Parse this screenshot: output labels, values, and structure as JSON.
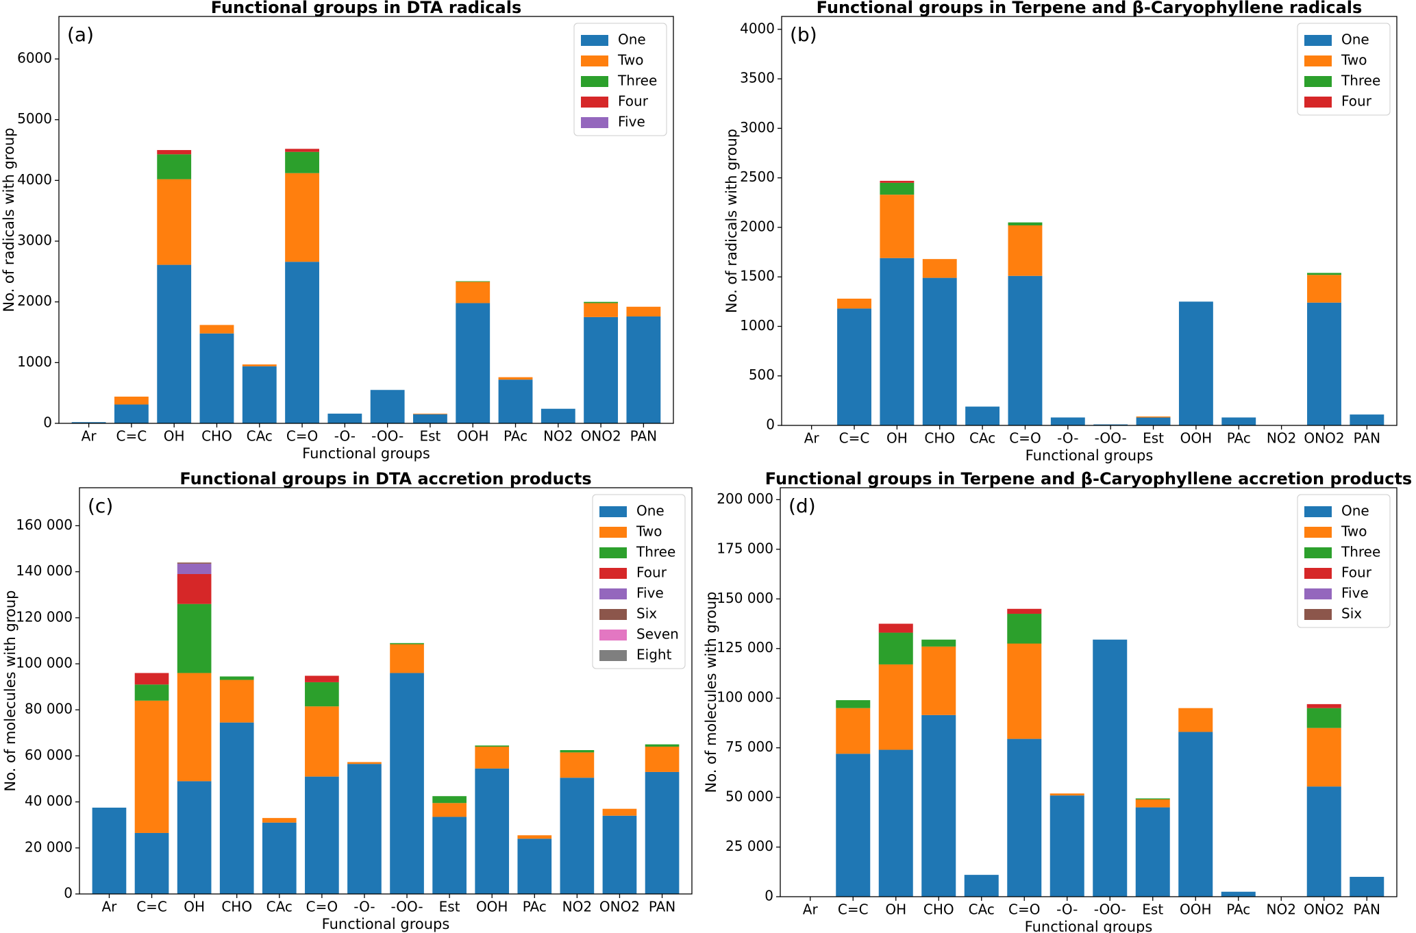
{
  "chart_data": [
    {
      "type": "bar",
      "stacked": true,
      "label": "(a)",
      "title": "Functional groups in DTA radicals",
      "xlabel": "Functional groups",
      "ylabel": "No. of radicals with group",
      "categories": [
        "Ar",
        "C=C",
        "OH",
        "CHO",
        "CAc",
        "C=O",
        "-O-",
        "-OO-",
        "Est",
        "OOH",
        "PAc",
        "NO2",
        "ONO2",
        "PAN"
      ],
      "ylim": [
        0,
        6700
      ],
      "yticks": [
        0,
        1000,
        2000,
        3000,
        4000,
        5000,
        6000
      ],
      "legend": "upper right",
      "series": [
        {
          "name": "One",
          "color": "#1f77b4",
          "values": [
            20,
            310,
            2610,
            1480,
            940,
            2660,
            160,
            550,
            150,
            1980,
            720,
            240,
            1750,
            1760
          ]
        },
        {
          "name": "Two",
          "color": "#ff7f0e",
          "values": [
            0,
            130,
            1410,
            140,
            30,
            1460,
            0,
            0,
            10,
            350,
            40,
            0,
            230,
            160
          ]
        },
        {
          "name": "Three",
          "color": "#2ca02c",
          "values": [
            0,
            0,
            410,
            0,
            0,
            350,
            0,
            0,
            0,
            10,
            0,
            0,
            20,
            0
          ]
        },
        {
          "name": "Four",
          "color": "#d62728",
          "values": [
            0,
            0,
            70,
            0,
            0,
            50,
            0,
            0,
            0,
            0,
            0,
            0,
            0,
            0
          ]
        },
        {
          "name": "Five",
          "color": "#9467bd",
          "values": [
            0,
            0,
            0,
            0,
            0,
            0,
            0,
            0,
            0,
            0,
            0,
            0,
            0,
            0
          ]
        }
      ]
    },
    {
      "type": "bar",
      "stacked": true,
      "label": "(b)",
      "title": "Functional groups in Terpene and β-Caryophyllene radicals",
      "xlabel": "Functional groups",
      "ylabel": "No. of radicals with group",
      "categories": [
        "Ar",
        "C=C",
        "OH",
        "CHO",
        "CAc",
        "C=O",
        "-O-",
        "-OO-",
        "Est",
        "OOH",
        "PAc",
        "NO2",
        "ONO2",
        "PAN"
      ],
      "ylim": [
        0,
        4130
      ],
      "yticks": [
        0,
        500,
        1000,
        1500,
        2000,
        2500,
        3000,
        3500,
        4000
      ],
      "legend": "upper right",
      "series": [
        {
          "name": "One",
          "color": "#1f77b4",
          "values": [
            0,
            1180,
            1690,
            1490,
            190,
            1510,
            80,
            10,
            80,
            1250,
            80,
            0,
            1240,
            110
          ]
        },
        {
          "name": "Two",
          "color": "#ff7f0e",
          "values": [
            0,
            100,
            640,
            190,
            0,
            510,
            0,
            0,
            10,
            0,
            0,
            0,
            280,
            0
          ]
        },
        {
          "name": "Three",
          "color": "#2ca02c",
          "values": [
            0,
            0,
            120,
            0,
            0,
            30,
            0,
            0,
            0,
            0,
            0,
            0,
            20,
            0
          ]
        },
        {
          "name": "Four",
          "color": "#d62728",
          "values": [
            0,
            0,
            20,
            0,
            0,
            0,
            0,
            0,
            0,
            0,
            0,
            0,
            0,
            0
          ]
        }
      ]
    },
    {
      "type": "bar",
      "stacked": true,
      "label": "(c)",
      "title": "Functional groups in DTA accretion products",
      "xlabel": "Functional groups",
      "ylabel": "No. of molecules with group",
      "categories": [
        "Ar",
        "C=C",
        "OH",
        "CHO",
        "CAc",
        "C=O",
        "-O-",
        "-OO-",
        "Est",
        "OOH",
        "PAc",
        "NO2",
        "ONO2",
        "PAN"
      ],
      "ylim": [
        0,
        176500
      ],
      "yticks": [
        0,
        {
          "value": 20000,
          "label": "20 000"
        },
        {
          "value": 40000,
          "label": "40 000"
        },
        {
          "value": 60000,
          "label": "60 000"
        },
        {
          "value": 80000,
          "label": "80 000"
        },
        {
          "value": 100000,
          "label": "100 000"
        },
        {
          "value": 120000,
          "label": "120 000"
        },
        {
          "value": 140000,
          "label": "140 000"
        },
        {
          "value": 160000,
          "label": "160 000"
        }
      ],
      "legend": "upper right",
      "series": [
        {
          "name": "One",
          "color": "#1f77b4",
          "values": [
            37500,
            26500,
            49000,
            74500,
            31000,
            51000,
            56500,
            96000,
            33500,
            54500,
            24000,
            50500,
            34000,
            53000
          ]
        },
        {
          "name": "Two",
          "color": "#ff7f0e",
          "values": [
            0,
            57500,
            47000,
            18500,
            2000,
            30500,
            800,
            12500,
            6000,
            9500,
            1500,
            11000,
            3000,
            11000
          ]
        },
        {
          "name": "Three",
          "color": "#2ca02c",
          "values": [
            0,
            7000,
            30000,
            1500,
            0,
            10500,
            0,
            500,
            3000,
            500,
            0,
            1000,
            0,
            1000
          ]
        },
        {
          "name": "Four",
          "color": "#d62728",
          "values": [
            0,
            5000,
            13000,
            0,
            0,
            2800,
            0,
            0,
            0,
            0,
            0,
            0,
            0,
            0
          ]
        },
        {
          "name": "Five",
          "color": "#9467bd",
          "values": [
            0,
            0,
            4500,
            0,
            0,
            0,
            0,
            0,
            0,
            0,
            0,
            0,
            0,
            0
          ]
        },
        {
          "name": "Six",
          "color": "#8c564b",
          "values": [
            0,
            0,
            500,
            0,
            0,
            0,
            0,
            0,
            0,
            0,
            0,
            0,
            0,
            0
          ]
        },
        {
          "name": "Seven",
          "color": "#e377c2",
          "values": [
            0,
            0,
            0,
            0,
            0,
            0,
            0,
            0,
            0,
            0,
            0,
            0,
            0,
            0
          ]
        },
        {
          "name": "Eight",
          "color": "#7f7f7f",
          "values": [
            0,
            0,
            0,
            0,
            0,
            0,
            0,
            0,
            0,
            0,
            0,
            0,
            0,
            0
          ]
        }
      ]
    },
    {
      "type": "bar",
      "stacked": true,
      "label": "(d)",
      "title": "Functional groups in Terpene and β-Caryophyllene accretion products",
      "xlabel": "Functional groups",
      "ylabel": "No. of molecules with group",
      "categories": [
        "Ar",
        "C=C",
        "OH",
        "CHO",
        "CAc",
        "C=O",
        "-O-",
        "-OO-",
        "Est",
        "OOH",
        "PAc",
        "NO2",
        "ONO2",
        "PAN"
      ],
      "ylim": [
        0,
        206000
      ],
      "yticks": [
        0,
        {
          "value": 25000,
          "label": "25 000"
        },
        {
          "value": 50000,
          "label": "50 000"
        },
        {
          "value": 75000,
          "label": "75 000"
        },
        {
          "value": 100000,
          "label": "100 000"
        },
        {
          "value": 125000,
          "label": "125 000"
        },
        {
          "value": 150000,
          "label": "150 000"
        },
        {
          "value": 175000,
          "label": "175 000"
        },
        {
          "value": 200000,
          "label": "200 000"
        }
      ],
      "legend": "upper right",
      "series": [
        {
          "name": "One",
          "color": "#1f77b4",
          "values": [
            0,
            72000,
            74000,
            91500,
            11000,
            79500,
            51000,
            129500,
            45000,
            83000,
            2500,
            0,
            55500,
            10000
          ]
        },
        {
          "name": "Two",
          "color": "#ff7f0e",
          "values": [
            0,
            23000,
            43000,
            34500,
            0,
            48000,
            1000,
            0,
            4000,
            12000,
            0,
            0,
            29500,
            0
          ]
        },
        {
          "name": "Three",
          "color": "#2ca02c",
          "values": [
            0,
            4000,
            16000,
            3500,
            0,
            15000,
            0,
            0,
            500,
            0,
            0,
            0,
            10000,
            0
          ]
        },
        {
          "name": "Four",
          "color": "#d62728",
          "values": [
            0,
            0,
            4500,
            0,
            0,
            2500,
            0,
            0,
            0,
            0,
            0,
            0,
            2000,
            0
          ]
        },
        {
          "name": "Five",
          "color": "#9467bd",
          "values": [
            0,
            0,
            0,
            0,
            0,
            0,
            0,
            0,
            0,
            0,
            0,
            0,
            0,
            0
          ]
        },
        {
          "name": "Six",
          "color": "#8c564b",
          "values": [
            0,
            0,
            0,
            0,
            0,
            0,
            0,
            0,
            0,
            0,
            0,
            0,
            0,
            0
          ]
        }
      ]
    }
  ]
}
